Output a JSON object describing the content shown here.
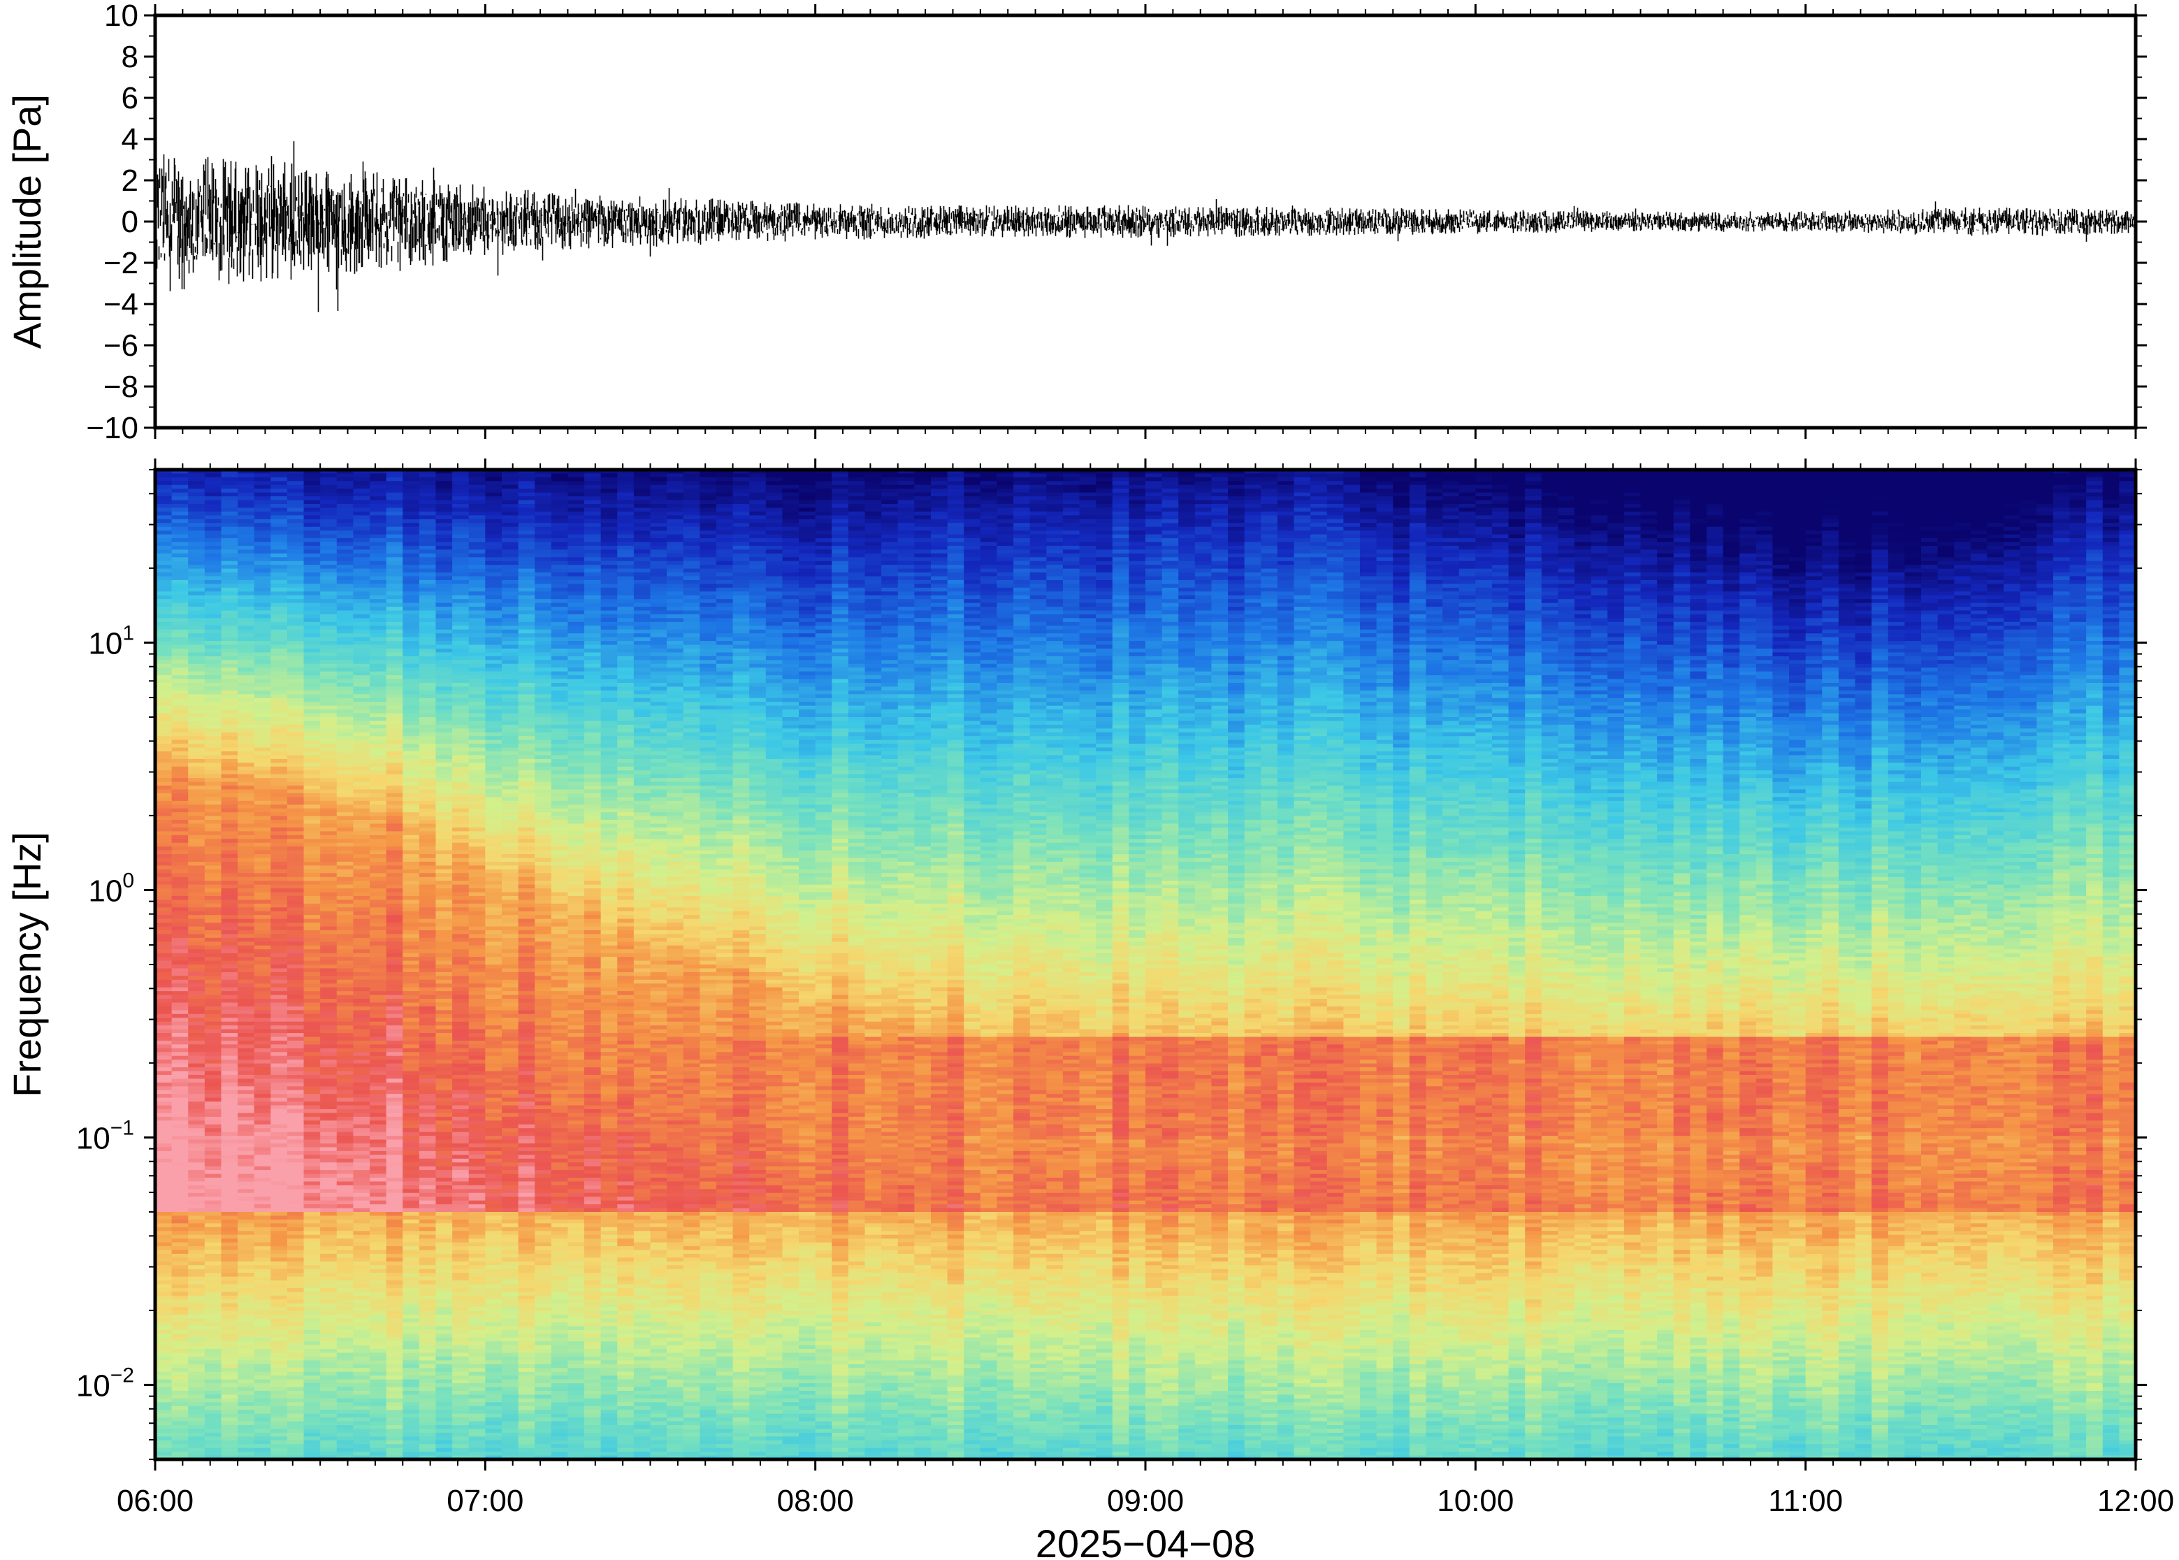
{
  "chart_data": [
    {
      "type": "line",
      "panel": "waveform",
      "title": "",
      "xlabel": "",
      "ylabel": "Amplitude [Pa]",
      "ylim": [
        -10,
        10
      ],
      "yticks": [
        -10,
        -8,
        -6,
        -4,
        -2,
        0,
        2,
        4,
        6,
        8,
        10
      ],
      "ytick_labels": [
        "−10",
        "−8",
        "−6",
        "−4",
        "−2",
        "0",
        "2",
        "4",
        "6",
        "8",
        "10"
      ],
      "x_range": [
        "2025-04-08 06:00",
        "2025-04-08 12:00"
      ],
      "series": [
        {
          "color": "#000000",
          "envelope_time_hours": [
            6.0,
            6.25,
            6.5,
            6.75,
            7.0,
            7.25,
            7.5,
            7.75,
            8.0,
            8.5,
            9.0,
            9.5,
            10.0,
            10.5,
            11.0,
            11.5,
            12.0
          ],
          "envelope_amplitude_pa": [
            3.5,
            3.0,
            2.8,
            2.4,
            1.7,
            1.4,
            1.2,
            1.1,
            0.9,
            0.8,
            0.8,
            0.7,
            0.6,
            0.5,
            0.5,
            0.7,
            0.6
          ]
        }
      ]
    },
    {
      "type": "heatmap",
      "panel": "spectrogram",
      "title": "",
      "xlabel": "2025−04−08",
      "ylabel": "Frequency [Hz]",
      "y_scale": "log",
      "ylim": [
        0.005,
        50
      ],
      "yticks": [
        0.01,
        0.1,
        1,
        10
      ],
      "ytick_labels": [
        {
          "base": "10",
          "exp": "−2"
        },
        {
          "base": "10",
          "exp": "−1"
        },
        {
          "base": "10",
          "exp": "0"
        },
        {
          "base": "10",
          "exp": "1"
        }
      ],
      "xticks": [
        "06:00",
        "07:00",
        "08:00",
        "09:00",
        "10:00",
        "11:00",
        "12:00"
      ],
      "colormap": "rainbow (red = high power, dark blue = low power)",
      "time_bins_hours": [
        6.0,
        6.5,
        7.0,
        7.5,
        8.0,
        8.5,
        9.0,
        9.5,
        10.0,
        10.5,
        11.0,
        11.5,
        12.0
      ],
      "high_power_upper_frequency_hz": [
        3.0,
        2.5,
        1.2,
        0.6,
        0.35,
        0.25,
        0.2,
        0.2,
        0.18,
        0.18,
        0.18,
        0.2,
        0.2
      ],
      "low_power_lower_frequency_hz": [
        40,
        38,
        35,
        30,
        25,
        30,
        28,
        30,
        20,
        18,
        12,
        15,
        25
      ]
    }
  ]
}
